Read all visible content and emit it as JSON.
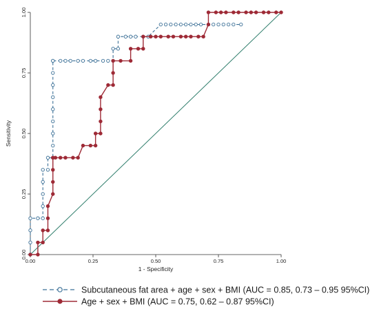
{
  "chart_data": {
    "type": "line",
    "xlabel": "1 - Specificity",
    "ylabel": "Sensitivity",
    "xlim": [
      0,
      1
    ],
    "ylim": [
      0,
      1
    ],
    "x_ticks": [
      "0.00",
      "0.25",
      "0.50",
      "0.75",
      "1.00"
    ],
    "y_ticks": [
      "0.00",
      "0.25",
      "0.50",
      "0.75",
      "1.00"
    ],
    "grid": false,
    "legend_position": "bottom",
    "reference_line": {
      "x": [
        0,
        1
      ],
      "y": [
        0,
        1
      ],
      "color": "#2e7d6b"
    },
    "series": [
      {
        "name": "Subcutaneous fat area + age + sex + BMI (AUC = 0.85, 0.73 – 0.95 95%CI)",
        "color": "#3a6f96",
        "marker": "hollow-circle",
        "line_style": "dash",
        "x": [
          0,
          0,
          0,
          0,
          0.03,
          0.05,
          0.05,
          0.05,
          0.05,
          0.05,
          0.07,
          0.07,
          0.09,
          0.09,
          0.09,
          0.09,
          0.09,
          0.09,
          0.09,
          0.09,
          0.09,
          0.09,
          0.12,
          0.14,
          0.16,
          0.19,
          0.21,
          0.24,
          0.26,
          0.29,
          0.31,
          0.33,
          0.33,
          0.35,
          0.35,
          0.38,
          0.4,
          0.42,
          0.45,
          0.47,
          0.52,
          0.54,
          0.56,
          0.58,
          0.6,
          0.62,
          0.64,
          0.66,
          0.68,
          0.71,
          0.73,
          0.75,
          0.77,
          0.79,
          0.81,
          0.84
        ],
        "y": [
          0,
          0.05,
          0.1,
          0.15,
          0.15,
          0.15,
          0.2,
          0.25,
          0.3,
          0.35,
          0.35,
          0.4,
          0.4,
          0.45,
          0.5,
          0.55,
          0.6,
          0.65,
          0.7,
          0.75,
          0.8,
          0.8,
          0.8,
          0.8,
          0.8,
          0.8,
          0.8,
          0.8,
          0.8,
          0.8,
          0.8,
          0.8,
          0.85,
          0.85,
          0.9,
          0.9,
          0.9,
          0.9,
          0.9,
          0.9,
          0.95,
          0.95,
          0.95,
          0.95,
          0.95,
          0.95,
          0.95,
          0.95,
          0.95,
          0.95,
          0.95,
          0.95,
          0.95,
          0.95,
          0.95,
          0.95
        ]
      },
      {
        "name": "Age + sex + BMI (AUC = 0.75, 0.62 – 0.87 95%CI)",
        "color": "#9e2a36",
        "marker": "filled-circle",
        "line_style": "solid",
        "x": [
          0,
          0.03,
          0.03,
          0.05,
          0.05,
          0.07,
          0.07,
          0.07,
          0.09,
          0.09,
          0.09,
          0.09,
          0.1,
          0.12,
          0.14,
          0.17,
          0.19,
          0.21,
          0.24,
          0.26,
          0.26,
          0.28,
          0.28,
          0.28,
          0.28,
          0.31,
          0.33,
          0.33,
          0.33,
          0.36,
          0.4,
          0.4,
          0.43,
          0.45,
          0.45,
          0.48,
          0.5,
          0.52,
          0.55,
          0.57,
          0.6,
          0.62,
          0.64,
          0.67,
          0.69,
          0.71,
          0.71,
          0.74,
          0.76,
          0.78,
          0.81,
          0.83,
          0.86,
          0.88,
          0.9,
          0.93,
          0.95,
          0.98,
          1
        ],
        "y": [
          0,
          0,
          0.05,
          0.05,
          0.1,
          0.1,
          0.15,
          0.2,
          0.25,
          0.3,
          0.35,
          0.4,
          0.4,
          0.4,
          0.4,
          0.4,
          0.4,
          0.45,
          0.45,
          0.45,
          0.5,
          0.5,
          0.55,
          0.6,
          0.65,
          0.7,
          0.7,
          0.75,
          0.8,
          0.8,
          0.8,
          0.85,
          0.85,
          0.85,
          0.9,
          0.9,
          0.9,
          0.9,
          0.9,
          0.9,
          0.9,
          0.9,
          0.9,
          0.9,
          0.9,
          0.95,
          1.0,
          1.0,
          1.0,
          1.0,
          1.0,
          1.0,
          1.0,
          1.0,
          1.0,
          1.0,
          1.0,
          1.0,
          1.0
        ]
      }
    ]
  }
}
